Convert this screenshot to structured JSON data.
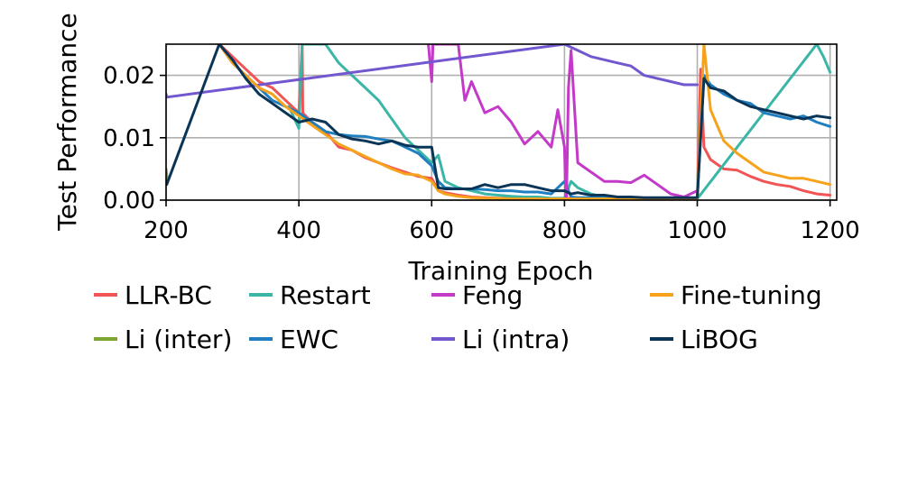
{
  "chart_data": {
    "type": "line",
    "title": "",
    "xlabel": "Training Epoch",
    "ylabel": "Test Performance",
    "xlim": [
      200,
      1210
    ],
    "ylim": [
      0.0,
      0.025
    ],
    "xticks": [
      200,
      400,
      600,
      800,
      1000,
      1200
    ],
    "xtick_labels": [
      "200",
      "400",
      "600",
      "800",
      "1000",
      "1200"
    ],
    "yticks": [
      0.0,
      0.01,
      0.02
    ],
    "ytick_labels": [
      "0.00",
      "0.01",
      "0.02"
    ],
    "grid": true,
    "legend_position": "bottom",
    "series": [
      {
        "name": "LLR-BC",
        "color": "#f05454",
        "x": [
          280,
          300,
          320,
          340,
          360,
          380,
          400,
          405,
          406,
          410,
          420,
          440,
          460,
          480,
          500,
          520,
          540,
          560,
          580,
          600,
          610,
          620,
          640,
          660,
          680,
          700,
          720,
          740,
          760,
          780,
          800,
          810,
          820,
          840,
          860,
          880,
          900,
          920,
          940,
          960,
          980,
          1000,
          1005,
          1010,
          1020,
          1040,
          1060,
          1080,
          1100,
          1120,
          1140,
          1160,
          1180,
          1200
        ],
        "y": [
          0.025,
          0.023,
          0.021,
          0.019,
          0.018,
          0.016,
          0.014,
          0.025,
          0.014,
          0.0135,
          0.0125,
          0.011,
          0.0085,
          0.008,
          0.0068,
          0.006,
          0.0052,
          0.0045,
          0.0038,
          0.0035,
          0.0015,
          0.0012,
          0.0008,
          0.0005,
          0.0004,
          0.0003,
          0.0003,
          0.0002,
          0.0002,
          0.0002,
          0.0002,
          0.0003,
          0.0002,
          0.0002,
          0.0002,
          0.0002,
          0.0002,
          0.0002,
          0.0002,
          0.0002,
          0.0002,
          0.0002,
          0.021,
          0.0085,
          0.0065,
          0.005,
          0.0048,
          0.0038,
          0.003,
          0.0025,
          0.0022,
          0.0015,
          0.001,
          0.0008
        ]
      },
      {
        "name": "Li (inter)",
        "color": "#7aa631",
        "x": [
          200,
          201,
          202
        ],
        "y": [
          0.005,
          0.004,
          0.003
        ]
      },
      {
        "name": "Restart",
        "color": "#3bb6a6",
        "x": [
          385,
          400,
          405,
          440,
          460,
          480,
          500,
          520,
          540,
          560,
          580,
          600,
          610,
          620,
          640,
          660,
          680,
          700,
          720,
          740,
          760,
          780,
          800,
          810,
          820,
          840,
          860,
          880,
          900,
          920,
          940,
          960,
          980,
          1000,
          1180,
          1190,
          1200
        ],
        "y": [
          0.015,
          0.0115,
          0.025,
          0.025,
          0.022,
          0.02,
          0.018,
          0.016,
          0.013,
          0.01,
          0.008,
          0.006,
          0.0072,
          0.003,
          0.002,
          0.0015,
          0.001,
          0.0008,
          0.0006,
          0.0005,
          0.0005,
          0.0003,
          0.0003,
          0.003,
          0.002,
          0.001,
          0.0005,
          0.0004,
          0.0003,
          0.0003,
          0.0002,
          0.0002,
          0.0002,
          0.0002,
          0.025,
          0.023,
          0.0205
        ]
      },
      {
        "name": "EWC",
        "color": "#1f7fc0",
        "x": [
          280,
          300,
          320,
          340,
          360,
          380,
          400,
          420,
          440,
          460,
          480,
          500,
          520,
          540,
          560,
          580,
          600,
          610,
          620,
          640,
          660,
          680,
          700,
          720,
          740,
          760,
          780,
          800,
          810,
          820,
          840,
          860,
          880,
          900,
          920,
          940,
          960,
          980,
          1000,
          1010,
          1020,
          1040,
          1060,
          1080,
          1100,
          1120,
          1140,
          1160,
          1180,
          1200
        ],
        "y": [
          0.025,
          0.022,
          0.02,
          0.018,
          0.016,
          0.015,
          0.014,
          0.0125,
          0.011,
          0.0105,
          0.0103,
          0.0102,
          0.0098,
          0.0095,
          0.0085,
          0.0075,
          0.0055,
          0.003,
          0.002,
          0.0018,
          0.0018,
          0.0017,
          0.0015,
          0.0015,
          0.0013,
          0.0013,
          0.001,
          0.003,
          0.0005,
          0.0004,
          0.0004,
          0.0003,
          0.0003,
          0.0003,
          0.0003,
          0.0003,
          0.0003,
          0.0003,
          0.0003,
          0.02,
          0.0185,
          0.017,
          0.016,
          0.0155,
          0.014,
          0.0135,
          0.013,
          0.0135,
          0.0125,
          0.0118
        ]
      },
      {
        "name": "Feng",
        "color": "#c43ac8",
        "x": [
          595,
          600,
          602,
          640,
          650,
          660,
          680,
          700,
          720,
          740,
          760,
          780,
          790,
          800,
          802,
          803,
          806,
          810,
          820,
          840,
          860,
          880,
          900,
          920,
          940,
          960,
          980,
          1000
        ],
        "y": [
          0.025,
          0.019,
          0.025,
          0.025,
          0.016,
          0.019,
          0.014,
          0.015,
          0.0125,
          0.009,
          0.011,
          0.0085,
          0.0145,
          0.0085,
          0.0,
          0.0,
          0.018,
          0.024,
          0.006,
          0.0045,
          0.003,
          0.003,
          0.0028,
          0.004,
          0.0025,
          0.001,
          0.0005,
          0.0015
        ]
      },
      {
        "name": "Li (intra)",
        "color": "#7257cf",
        "x": [
          200,
          201,
          800,
          820,
          840,
          860,
          880,
          900,
          920,
          940,
          960,
          980,
          1000
        ],
        "y": [
          0.017,
          0.0165,
          0.025,
          0.024,
          0.023,
          0.0225,
          0.022,
          0.0215,
          0.02,
          0.0195,
          0.019,
          0.0185,
          0.0185
        ]
      },
      {
        "name": "Fine-tuning",
        "color": "#f6a21a",
        "x": [
          280,
          300,
          320,
          340,
          360,
          380,
          400,
          420,
          440,
          460,
          480,
          500,
          520,
          540,
          560,
          580,
          600,
          610,
          620,
          640,
          660,
          680,
          700,
          720,
          740,
          760,
          780,
          800,
          810,
          820,
          840,
          860,
          880,
          900,
          920,
          940,
          960,
          980,
          1000,
          1010,
          1020,
          1040,
          1060,
          1080,
          1100,
          1120,
          1140,
          1160,
          1180,
          1200
        ],
        "y": [
          0.025,
          0.022,
          0.02,
          0.018,
          0.017,
          0.015,
          0.0135,
          0.012,
          0.0105,
          0.009,
          0.008,
          0.007,
          0.006,
          0.005,
          0.0042,
          0.004,
          0.003,
          0.0015,
          0.001,
          0.0006,
          0.0004,
          0.0003,
          0.0003,
          0.0002,
          0.0002,
          0.0002,
          0.0002,
          0.0002,
          0.0002,
          0.0002,
          0.0002,
          0.0002,
          0.0002,
          0.0002,
          0.0002,
          0.0002,
          0.0002,
          0.0002,
          0.0002,
          0.025,
          0.0145,
          0.0095,
          0.0075,
          0.006,
          0.0045,
          0.004,
          0.0035,
          0.0035,
          0.003,
          0.0025
        ]
      },
      {
        "name": "LiBOG",
        "color": "#0b3557",
        "x": [
          200,
          201,
          280,
          300,
          320,
          340,
          360,
          380,
          400,
          420,
          440,
          460,
          480,
          500,
          520,
          540,
          560,
          580,
          600,
          610,
          620,
          640,
          660,
          680,
          700,
          720,
          740,
          760,
          780,
          800,
          810,
          820,
          840,
          860,
          880,
          900,
          920,
          940,
          960,
          980,
          1000,
          1010,
          1020,
          1040,
          1060,
          1080,
          1100,
          1120,
          1140,
          1160,
          1180,
          1200
        ],
        "y": [
          0.003,
          0.0025,
          0.025,
          0.0225,
          0.0195,
          0.017,
          0.0155,
          0.014,
          0.0125,
          0.013,
          0.0125,
          0.0105,
          0.0098,
          0.0095,
          0.009,
          0.0095,
          0.0088,
          0.0085,
          0.0085,
          0.002,
          0.0018,
          0.0018,
          0.0018,
          0.0025,
          0.002,
          0.0025,
          0.0025,
          0.002,
          0.0015,
          0.0015,
          0.001,
          0.0012,
          0.0008,
          0.0008,
          0.0005,
          0.0005,
          0.0004,
          0.0004,
          0.0004,
          0.0004,
          0.0004,
          0.0195,
          0.018,
          0.0175,
          0.016,
          0.015,
          0.0145,
          0.014,
          0.0135,
          0.013,
          0.0135,
          0.0132
        ]
      }
    ]
  }
}
